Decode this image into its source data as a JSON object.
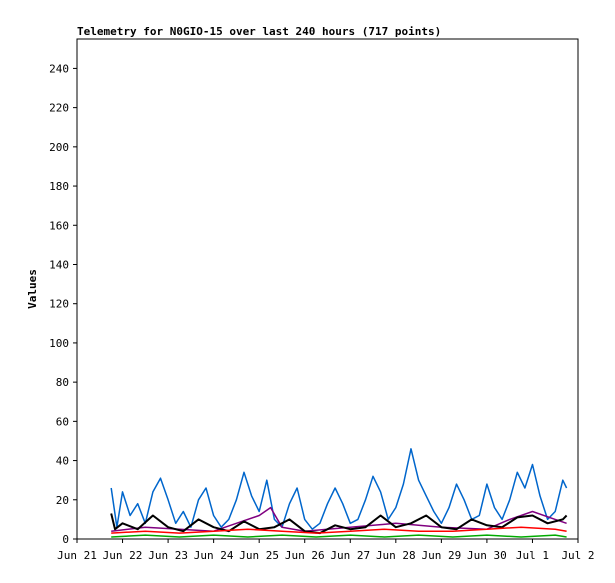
{
  "chart_data": {
    "type": "line",
    "title": "Telemetry for N0GIO-15 over last 240 hours (717 points)",
    "xlabel": "",
    "ylabel": "Values",
    "xlim": [
      "Jun 21",
      "Jul 2"
    ],
    "ylim": [
      0,
      255
    ],
    "x_tick_labels": [
      "Jun 21",
      "Jun 22",
      "Jun 23",
      "Jun 24",
      "Jun 25",
      "Jun 26",
      "Jun 27",
      "Jun 28",
      "Jun 29",
      "Jun 30",
      "Jul 1",
      "Jul 2"
    ],
    "y_ticks": [
      0,
      20,
      40,
      60,
      80,
      100,
      120,
      140,
      160,
      180,
      200,
      220,
      240
    ],
    "grid": false,
    "legend": "none",
    "series": [
      {
        "color": "#0066cc",
        "x": [
          "Jun 21 18:00",
          "Jun 21 21:00",
          "Jun 22 00:00",
          "Jun 22 04:00",
          "Jun 22 08:00",
          "Jun 22 12:00",
          "Jun 22 16:00",
          "Jun 22 20:00",
          "Jun 23 00:00",
          "Jun 23 04:00",
          "Jun 23 08:00",
          "Jun 23 12:00",
          "Jun 23 16:00",
          "Jun 23 20:00",
          "Jun 24 00:00",
          "Jun 24 04:00",
          "Jun 24 08:00",
          "Jun 24 12:00",
          "Jun 24 16:00",
          "Jun 24 20:00",
          "Jun 25 00:00",
          "Jun 25 04:00",
          "Jun 25 08:00",
          "Jun 25 12:00",
          "Jun 25 16:00",
          "Jun 25 20:00",
          "Jun 26 00:00",
          "Jun 26 04:00",
          "Jun 26 08:00",
          "Jun 26 12:00",
          "Jun 26 16:00",
          "Jun 26 20:00",
          "Jun 27 00:00",
          "Jun 27 04:00",
          "Jun 27 08:00",
          "Jun 27 12:00",
          "Jun 27 16:00",
          "Jun 27 20:00",
          "Jun 28 00:00",
          "Jun 28 04:00",
          "Jun 28 08:00",
          "Jun 28 12:00",
          "Jun 28 16:00",
          "Jun 28 20:00",
          "Jun 29 00:00",
          "Jun 29 04:00",
          "Jun 29 08:00",
          "Jun 29 12:00",
          "Jun 29 16:00",
          "Jun 29 20:00",
          "Jun 30 00:00",
          "Jun 30 04:00",
          "Jun 30 08:00",
          "Jun 30 12:00",
          "Jun 30 16:00",
          "Jun 30 20:00",
          "Jul 1 00:00",
          "Jul 1 04:00",
          "Jul 1 08:00",
          "Jul 1 12:00",
          "Jul 1 16:00",
          "Jul 1 18:00"
        ],
        "values": [
          26,
          6,
          24,
          12,
          18,
          8,
          24,
          31,
          20,
          8,
          14,
          6,
          20,
          26,
          12,
          6,
          10,
          20,
          34,
          22,
          14,
          30,
          10,
          6,
          18,
          26,
          10,
          5,
          8,
          18,
          26,
          18,
          8,
          10,
          20,
          32,
          24,
          10,
          16,
          28,
          46,
          30,
          22,
          14,
          8,
          16,
          28,
          20,
          10,
          12,
          28,
          16,
          10,
          20,
          34,
          26,
          38,
          22,
          10,
          14,
          30,
          26
        ]
      },
      {
        "color": "#800080",
        "x": [
          "Jun 21 18:00",
          "Jun 22 12:00",
          "Jun 23 06:00",
          "Jun 24 00:00",
          "Jun 24 12:00",
          "Jun 25 00:00",
          "Jun 25 06:00",
          "Jun 25 12:00",
          "Jun 26 00:00",
          "Jun 26 12:00",
          "Jun 27 00:00",
          "Jun 28 00:00",
          "Jun 29 00:00",
          "Jun 30 00:00",
          "Jun 30 12:00",
          "Jul 1 00:00",
          "Jul 1 12:00",
          "Jul 1 18:00"
        ],
        "values": [
          4,
          6,
          5,
          4,
          8,
          12,
          16,
          6,
          4,
          5,
          6,
          8,
          6,
          5,
          10,
          14,
          10,
          8
        ]
      },
      {
        "color": "#000000",
        "x": [
          "Jun 21 18:00",
          "Jun 21 20:00",
          "Jun 22 00:00",
          "Jun 22 08:00",
          "Jun 22 16:00",
          "Jun 23 00:00",
          "Jun 23 08:00",
          "Jun 23 16:00",
          "Jun 24 00:00",
          "Jun 24 08:00",
          "Jun 24 16:00",
          "Jun 25 00:00",
          "Jun 25 08:00",
          "Jun 25 16:00",
          "Jun 26 00:00",
          "Jun 26 08:00",
          "Jun 26 16:00",
          "Jun 27 00:00",
          "Jun 27 08:00",
          "Jun 27 16:00",
          "Jun 28 00:00",
          "Jun 28 08:00",
          "Jun 28 16:00",
          "Jun 29 00:00",
          "Jun 29 08:00",
          "Jun 29 16:00",
          "Jun 30 00:00",
          "Jun 30 08:00",
          "Jun 30 16:00",
          "Jul 1 00:00",
          "Jul 1 08:00",
          "Jul 1 16:00",
          "Jul 1 18:00"
        ],
        "values": [
          13,
          5,
          8,
          5,
          12,
          6,
          4,
          10,
          6,
          4,
          9,
          5,
          6,
          10,
          4,
          3,
          7,
          5,
          6,
          12,
          6,
          8,
          12,
          6,
          5,
          10,
          7,
          6,
          11,
          12,
          8,
          10,
          12
        ]
      },
      {
        "color": "#ff0000",
        "x": [
          "Jun 21 18:00",
          "Jun 22 12:00",
          "Jun 23 06:00",
          "Jun 24 00:00",
          "Jun 24 18:00",
          "Jun 25 12:00",
          "Jun 26 06:00",
          "Jun 27 00:00",
          "Jun 27 18:00",
          "Jun 28 12:00",
          "Jun 29 06:00",
          "Jun 30 00:00",
          "Jun 30 18:00",
          "Jul 1 12:00",
          "Jul 1 18:00"
        ],
        "values": [
          3,
          4,
          3,
          4,
          5,
          4,
          3,
          4,
          5,
          4,
          4,
          5,
          6,
          5,
          4
        ]
      },
      {
        "color": "#00aa00",
        "x": [
          "Jun 21 18:00",
          "Jun 22 12:00",
          "Jun 23 06:00",
          "Jun 24 00:00",
          "Jun 24 18:00",
          "Jun 25 12:00",
          "Jun 26 06:00",
          "Jun 27 00:00",
          "Jun 27 18:00",
          "Jun 28 12:00",
          "Jun 29 06:00",
          "Jun 30 00:00",
          "Jun 30 18:00",
          "Jul 1 12:00",
          "Jul 1 18:00"
        ],
        "values": [
          1,
          2,
          1,
          2,
          1,
          2,
          1,
          2,
          1,
          2,
          1,
          2,
          1,
          2,
          1
        ]
      }
    ]
  }
}
